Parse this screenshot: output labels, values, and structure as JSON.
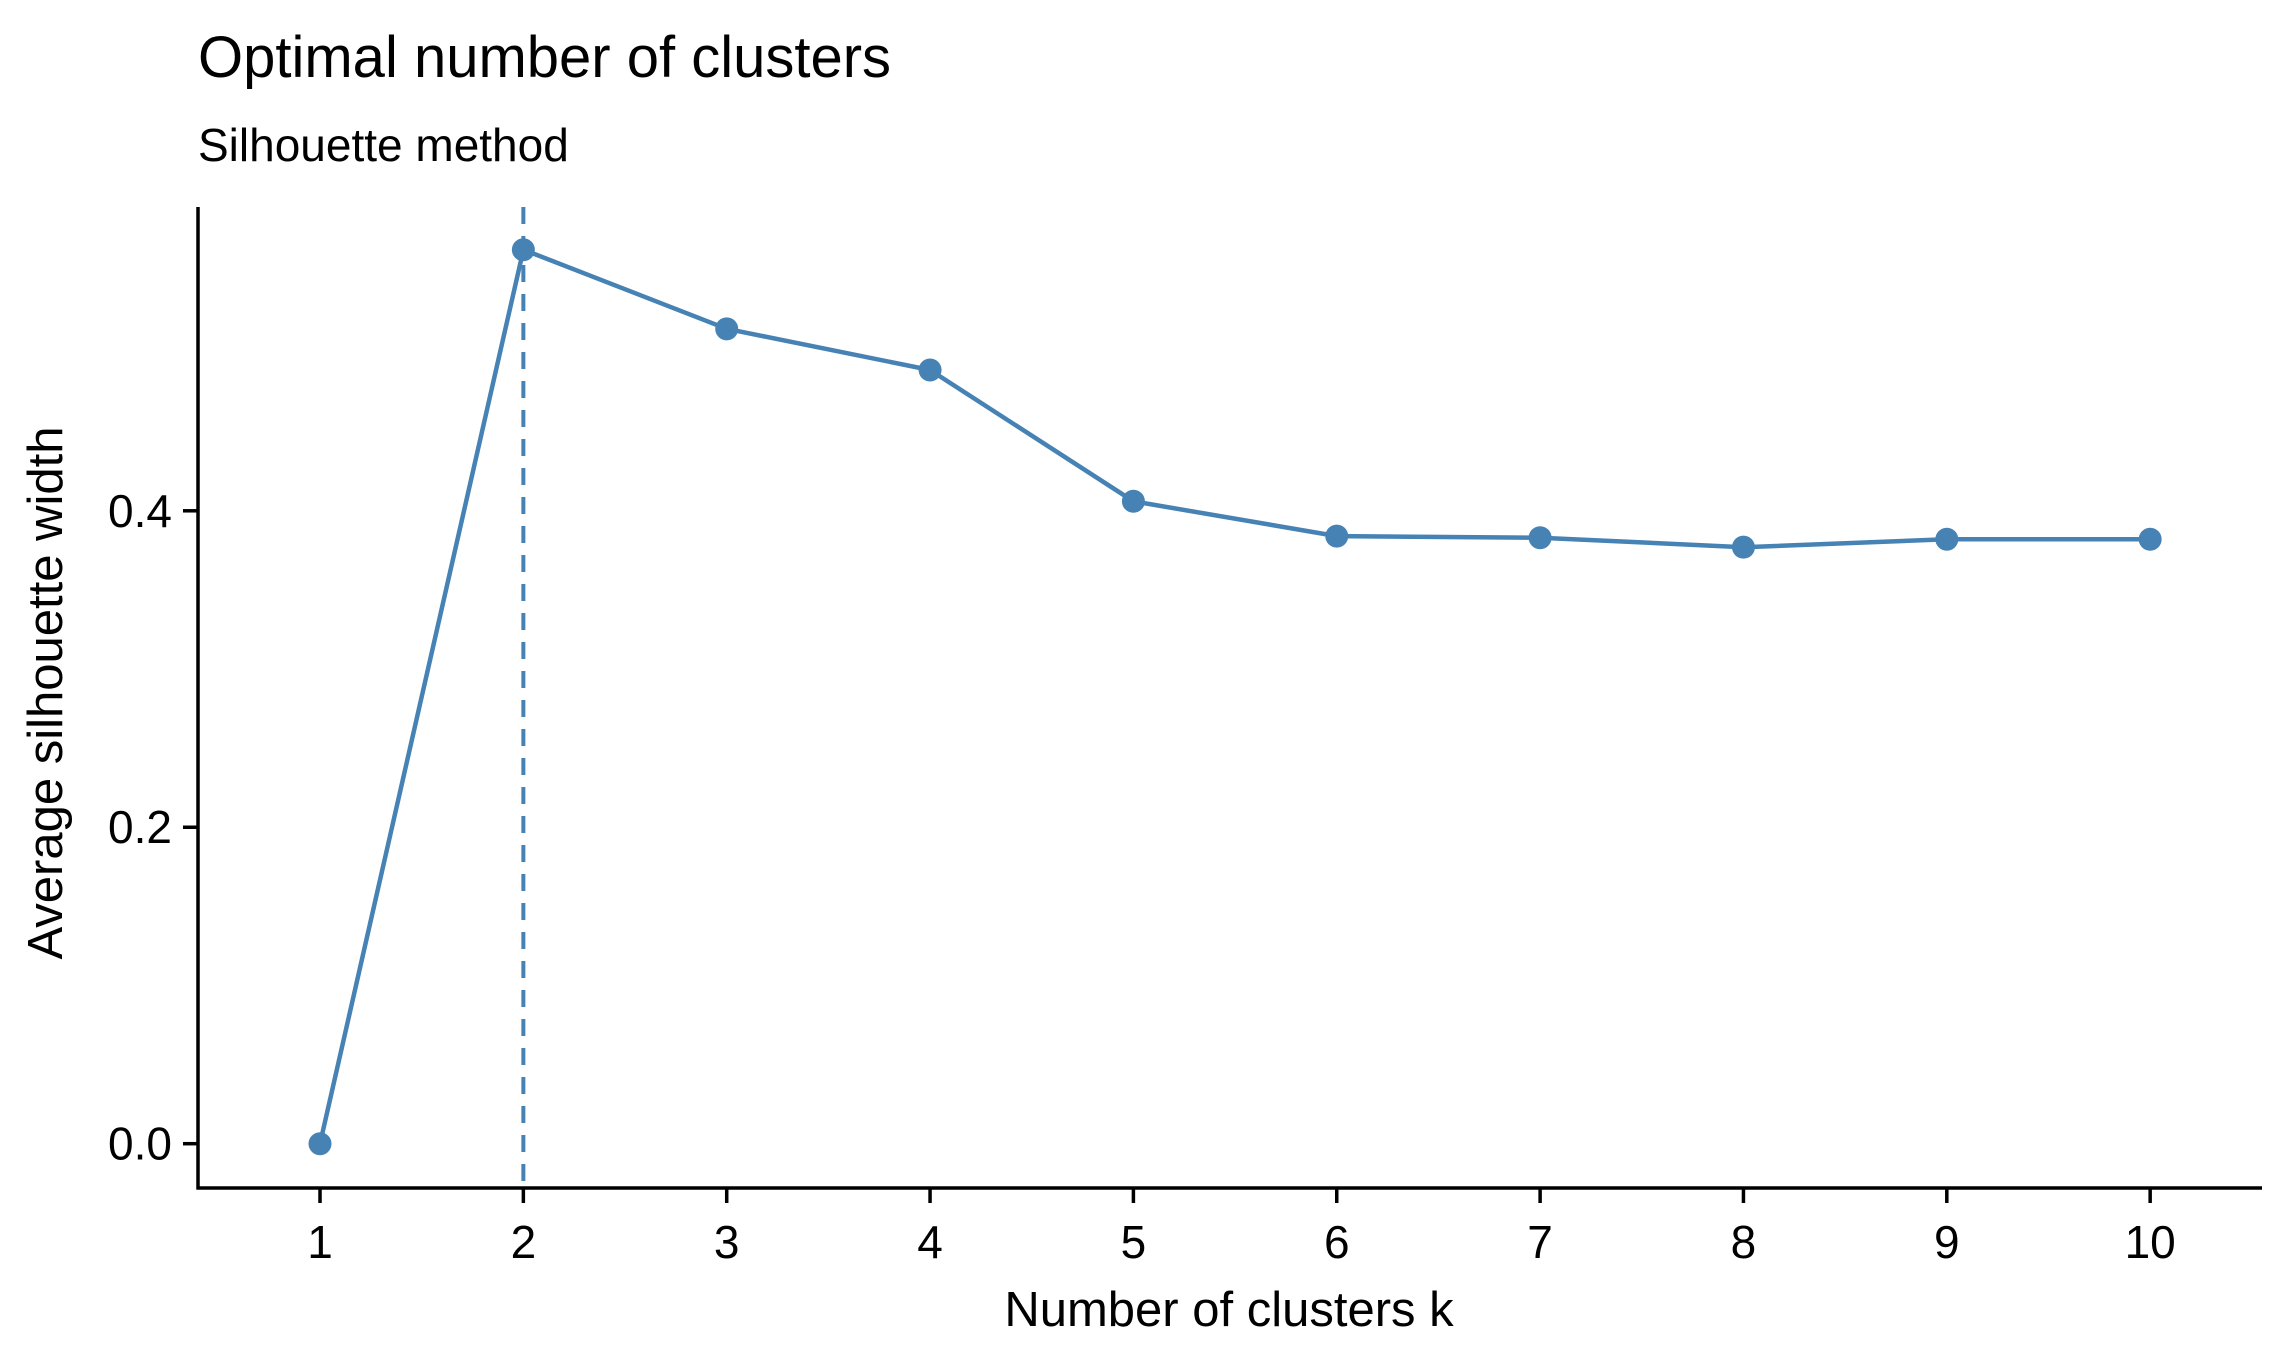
{
  "chart_data": {
    "type": "line",
    "title": "Optimal number of clusters",
    "subtitle": "Silhouette method",
    "xlabel": "Number of clusters k",
    "ylabel": "Average silhouette width",
    "categories": [
      "1",
      "2",
      "3",
      "4",
      "5",
      "6",
      "7",
      "8",
      "9",
      "10"
    ],
    "x": [
      1,
      2,
      3,
      4,
      5,
      6,
      7,
      8,
      9,
      10
    ],
    "values": [
      0.0,
      0.565,
      0.515,
      0.489,
      0.406,
      0.384,
      0.383,
      0.377,
      0.382,
      0.382
    ],
    "y_ticks": [
      0.0,
      0.2,
      0.4
    ],
    "y_tick_labels": [
      "0.0",
      "0.2",
      "0.4"
    ],
    "xlim": [
      0.4,
      10.55
    ],
    "ylim": [
      -0.028,
      0.592
    ],
    "optimal_k": 2,
    "grid": false,
    "legend": "none",
    "colors": {
      "series": "#4682B4",
      "axis": "#000000"
    }
  }
}
